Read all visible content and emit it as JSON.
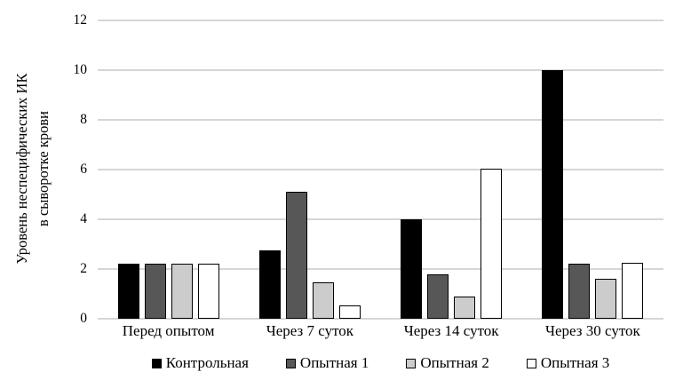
{
  "chart_data": {
    "type": "bar",
    "title": "",
    "ylabel": "Уровень неспецифических ИК\nв сыворотке крови",
    "xlabel": "",
    "categories": [
      "Перед опытом",
      "Через 7 суток",
      "Через 14 суток",
      "Через 30 суток"
    ],
    "series": [
      {
        "name": "Контрольная",
        "color": "#000000",
        "values": [
          2.2,
          2.75,
          4.0,
          10.0
        ]
      },
      {
        "name": "Опытная 1",
        "color": "#575757",
        "values": [
          2.2,
          5.1,
          1.8,
          2.2
        ]
      },
      {
        "name": "Опытная 2",
        "color": "#cccccc",
        "values": [
          2.2,
          1.45,
          0.9,
          1.6
        ]
      },
      {
        "name": "Опытная 3",
        "color": "#ffffff",
        "values": [
          2.2,
          0.55,
          6.05,
          2.25
        ]
      }
    ],
    "ylim": [
      0,
      12
    ],
    "yticks": [
      0,
      2,
      4,
      6,
      8,
      10,
      12
    ],
    "grid": "horizontal",
    "gridline_color": "#d6d6d6",
    "bar_border_color": "#000000",
    "legend_position": "bottom"
  }
}
